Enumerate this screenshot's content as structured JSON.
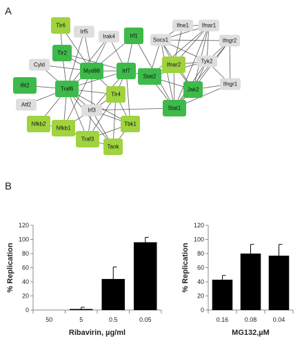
{
  "panels": {
    "a_label": "A",
    "b_label": "B"
  },
  "colors": {
    "dark_green": "#3dba4a",
    "light_green": "#9fd33f",
    "gray": "#dedede",
    "bar": "#000000"
  },
  "network": {
    "nodes": [
      {
        "id": "Tlr6",
        "label": "Tlr6",
        "group": "light_green"
      },
      {
        "id": "Irf5",
        "label": "Irf5",
        "group": "gray"
      },
      {
        "id": "Irak4",
        "label": "Irak4",
        "group": "gray"
      },
      {
        "id": "Irf1",
        "label": "Irf1",
        "group": "dark_green"
      },
      {
        "id": "Ifne1",
        "label": "Ifne1",
        "group": "gray"
      },
      {
        "id": "Ifnar1",
        "label": "Ifnar1",
        "group": "gray"
      },
      {
        "id": "Socs1",
        "label": "Socs1",
        "group": "gray"
      },
      {
        "id": "Ifngr2",
        "label": "Ifngr2",
        "group": "gray"
      },
      {
        "id": "Tlr2",
        "label": "Tlr2",
        "group": "dark_green"
      },
      {
        "id": "Cyld",
        "label": "Cyld",
        "group": "gray"
      },
      {
        "id": "Myd88",
        "label": "Myd88",
        "group": "dark_green"
      },
      {
        "id": "Irf7",
        "label": "Irf7",
        "group": "dark_green"
      },
      {
        "id": "Ifnar2",
        "label": "Ifnar2",
        "group": "light_green"
      },
      {
        "id": "Tyk2",
        "label": "Tyk2",
        "group": "gray"
      },
      {
        "id": "Stat2",
        "label": "Stat2",
        "group": "dark_green"
      },
      {
        "id": "Ifit2",
        "label": "Ifit2",
        "group": "dark_green"
      },
      {
        "id": "Traf6",
        "label": "Traf6",
        "group": "dark_green"
      },
      {
        "id": "Tlr4",
        "label": "Tlr4",
        "group": "light_green"
      },
      {
        "id": "Jak2",
        "label": "Jak2",
        "group": "dark_green"
      },
      {
        "id": "Ifngr1",
        "label": "Ifngr1",
        "group": "gray"
      },
      {
        "id": "Atf2",
        "label": "Atf2",
        "group": "gray"
      },
      {
        "id": "Irf3",
        "label": "Irf3",
        "group": "gray"
      },
      {
        "id": "Stat1",
        "label": "Stat1",
        "group": "dark_green"
      },
      {
        "id": "Nfkb2",
        "label": "Nfkb2",
        "group": "light_green"
      },
      {
        "id": "Nfkb1",
        "label": "Nfkb1",
        "group": "light_green"
      },
      {
        "id": "Tbk1",
        "label": "Tbk1",
        "group": "light_green"
      },
      {
        "id": "Traf3",
        "label": "Traf3",
        "group": "light_green"
      },
      {
        "id": "Tank",
        "label": "Tank",
        "group": "light_green"
      }
    ],
    "edges": [
      [
        "Tlr6",
        "Tlr2"
      ],
      [
        "Tlr6",
        "Myd88"
      ],
      [
        "Tlr2",
        "Myd88"
      ],
      [
        "Tlr2",
        "Traf6"
      ],
      [
        "Tlr2",
        "Irf7"
      ],
      [
        "Irf5",
        "Myd88"
      ],
      [
        "Irf5",
        "Traf6"
      ],
      [
        "Irak4",
        "Myd88"
      ],
      [
        "Irak4",
        "Traf6"
      ],
      [
        "Irak4",
        "Irf7"
      ],
      [
        "Irf1",
        "Myd88"
      ],
      [
        "Irf1",
        "Irf7"
      ],
      [
        "Irf1",
        "Stat1"
      ],
      [
        "Cyld",
        "Traf6"
      ],
      [
        "Cyld",
        "Myd88"
      ],
      [
        "Myd88",
        "Traf6"
      ],
      [
        "Myd88",
        "Irf7"
      ],
      [
        "Myd88",
        "Tlr4"
      ],
      [
        "Myd88",
        "Irf3"
      ],
      [
        "Myd88",
        "Nfkb1"
      ],
      [
        "Ifit2",
        "Traf6"
      ],
      [
        "Atf2",
        "Traf6"
      ],
      [
        "Traf6",
        "Tlr4"
      ],
      [
        "Traf6",
        "Nfkb1"
      ],
      [
        "Traf6",
        "Nfkb2"
      ],
      [
        "Traf6",
        "Traf3"
      ],
      [
        "Traf6",
        "Irf3"
      ],
      [
        "Traf6",
        "Irf7"
      ],
      [
        "Traf6",
        "Tank"
      ],
      [
        "Traf6",
        "Tbk1"
      ],
      [
        "Irf7",
        "Stat2"
      ],
      [
        "Irf7",
        "Irf3"
      ],
      [
        "Irf7",
        "Tlr4"
      ],
      [
        "Irf7",
        "Tbk1"
      ],
      [
        "Tlr4",
        "Irf3"
      ],
      [
        "Tlr4",
        "Tbk1"
      ],
      [
        "Tlr4",
        "Traf3"
      ],
      [
        "Tlr4",
        "Tank"
      ],
      [
        "Irf3",
        "Tbk1"
      ],
      [
        "Irf3",
        "Traf3"
      ],
      [
        "Irf3",
        "Tank"
      ],
      [
        "Irf3",
        "Nfkb1"
      ],
      [
        "Tbk1",
        "Tank"
      ],
      [
        "Tbk1",
        "Traf3"
      ],
      [
        "Traf3",
        "Tank"
      ],
      [
        "Nfkb1",
        "Nfkb2"
      ],
      [
        "Nfkb1",
        "Traf3"
      ],
      [
        "Stat2",
        "Ifnar2"
      ],
      [
        "Stat2",
        "Jak2"
      ],
      [
        "Stat2",
        "Stat1"
      ],
      [
        "Stat2",
        "Tyk2"
      ],
      [
        "Stat2",
        "Ifnar1"
      ],
      [
        "Stat2",
        "Socs1"
      ],
      [
        "Socs1",
        "Ifnar2"
      ],
      [
        "Socs1",
        "Jak2"
      ],
      [
        "Socs1",
        "Stat1"
      ],
      [
        "Socs1",
        "Tyk2"
      ],
      [
        "Socs1",
        "Ifnar1"
      ],
      [
        "Socs1",
        "Ifngr2"
      ],
      [
        "Socs1",
        "Ifne1"
      ],
      [
        "Ifne1",
        "Ifnar1"
      ],
      [
        "Ifne1",
        "Ifnar2"
      ],
      [
        "Ifnar1",
        "Ifnar2"
      ],
      [
        "Ifnar1",
        "Tyk2"
      ],
      [
        "Ifnar1",
        "Stat1"
      ],
      [
        "Ifnar1",
        "Jak2"
      ],
      [
        "Ifngr2",
        "Ifngr1"
      ],
      [
        "Ifngr2",
        "Jak2"
      ],
      [
        "Ifngr2",
        "Stat1"
      ],
      [
        "Ifngr2",
        "Tyk2"
      ],
      [
        "Ifnar2",
        "Tyk2"
      ],
      [
        "Ifnar2",
        "Jak2"
      ],
      [
        "Ifnar2",
        "Stat1"
      ],
      [
        "Tyk2",
        "Jak2"
      ],
      [
        "Tyk2",
        "Stat1"
      ],
      [
        "Tyk2",
        "Ifngr1"
      ],
      [
        "Jak2",
        "Stat1"
      ],
      [
        "Jak2",
        "Ifngr1"
      ],
      [
        "Stat1",
        "Ifngr1"
      ],
      [
        "Stat1",
        "Irf3"
      ]
    ]
  },
  "chart_data": [
    {
      "type": "bar",
      "categories": [
        "50",
        "5",
        "0.5",
        "0.05"
      ],
      "values": [
        0,
        1.5,
        44,
        96
      ],
      "errors": [
        0,
        2.5,
        17,
        7
      ],
      "xlabel": "Ribavirin, µg/ml",
      "ylabel": "% Replication",
      "ylim": [
        0,
        120
      ],
      "yticks": [
        0,
        20,
        40,
        60,
        80,
        100,
        120
      ]
    },
    {
      "type": "bar",
      "categories": [
        "0.16",
        "0.08",
        "0.04"
      ],
      "values": [
        43,
        80,
        77
      ],
      "errors": [
        6,
        13,
        16
      ],
      "xlabel": "MG132,µM",
      "ylabel": "% Replication",
      "ylim": [
        0,
        120
      ],
      "yticks": [
        0,
        20,
        40,
        60,
        80,
        100,
        120
      ]
    }
  ]
}
